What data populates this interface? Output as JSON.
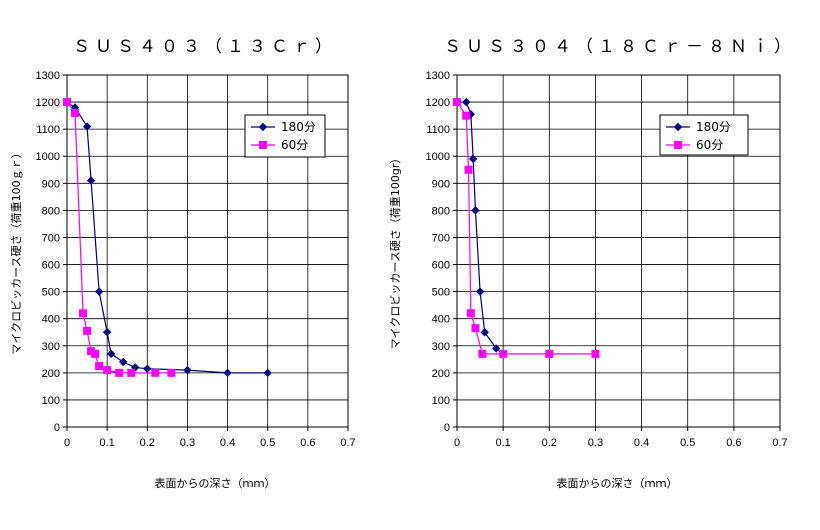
{
  "chart_data": [
    {
      "type": "line",
      "title": "ＳＵＳ４０３（１３Ｃｒ）",
      "xlabel": "表面からの深さ（ｍｍ）",
      "ylabel": "マイクロビッカース硬さ（荷重100ｇｒ）",
      "xlim": [
        0,
        0.7
      ],
      "ylim": [
        0,
        1300
      ],
      "xticks": [
        "0",
        "0.1",
        "0.2",
        "0.3",
        "0.4",
        "0.5",
        "0.6",
        "0.7"
      ],
      "yticks": [
        "0",
        "100",
        "200",
        "300",
        "400",
        "500",
        "600",
        "700",
        "800",
        "900",
        "1000",
        "1100",
        "1200",
        "1300"
      ],
      "grid": true,
      "legend_position": "top-right",
      "series": [
        {
          "name": "180分",
          "color": "#000080",
          "marker": "diamond",
          "x": [
            0,
            0.02,
            0.05,
            0.06,
            0.08,
            0.1,
            0.11,
            0.14,
            0.17,
            0.2,
            0.3,
            0.4,
            0.5
          ],
          "y": [
            1200,
            1180,
            1110,
            910,
            500,
            350,
            270,
            240,
            220,
            215,
            210,
            200,
            200
          ]
        },
        {
          "name": "60分",
          "color": "#ff00ff",
          "marker": "square",
          "x": [
            0,
            0.02,
            0.04,
            0.05,
            0.06,
            0.07,
            0.08,
            0.1,
            0.13,
            0.16,
            0.22,
            0.26
          ],
          "y": [
            1200,
            1160,
            420,
            355,
            280,
            270,
            225,
            210,
            200,
            200,
            200,
            200
          ]
        }
      ]
    },
    {
      "type": "line",
      "title": "ＳＵＳ３０４（１８Ｃｒ－８Ｎｉ）",
      "xlabel": "表面からの深さ（ｍｍ）",
      "ylabel": "マイクロビッカース硬さ（荷重100gr）",
      "xlim": [
        0,
        0.7
      ],
      "ylim": [
        0,
        1300
      ],
      "xticks": [
        "0",
        "0.1",
        "0.2",
        "0.3",
        "0.4",
        "0.5",
        "0.6",
        "0.7"
      ],
      "yticks": [
        "0",
        "100",
        "200",
        "300",
        "400",
        "500",
        "600",
        "700",
        "800",
        "900",
        "1000",
        "1100",
        "1200",
        "1300"
      ],
      "grid": true,
      "legend_position": "top-right",
      "series": [
        {
          "name": "180分",
          "color": "#000080",
          "marker": "diamond",
          "x": [
            0,
            0.02,
            0.03,
            0.035,
            0.04,
            0.05,
            0.06,
            0.085,
            0.1
          ],
          "y": [
            1200,
            1200,
            1155,
            990,
            800,
            500,
            350,
            290,
            270
          ]
        },
        {
          "name": "60分",
          "color": "#ff00ff",
          "marker": "square",
          "x": [
            0,
            0.02,
            0.025,
            0.03,
            0.04,
            0.055,
            0.1,
            0.2,
            0.3
          ],
          "y": [
            1200,
            1150,
            950,
            420,
            365,
            270,
            270,
            270,
            270
          ]
        }
      ]
    }
  ]
}
